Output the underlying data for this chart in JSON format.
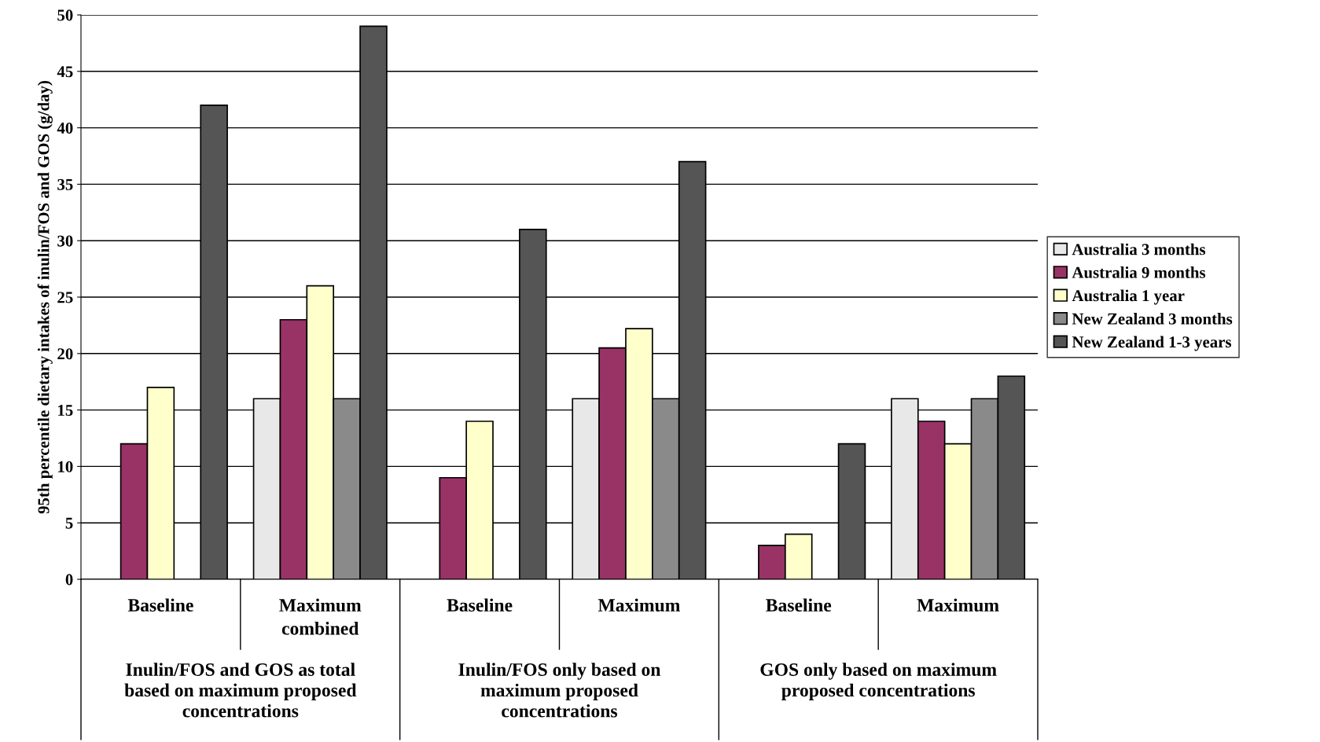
{
  "chart_data": {
    "type": "bar",
    "ylabel": "95th percentile dietary intakes of inulin/FOS and GOS (g/day)",
    "categories": [
      "Baseline",
      "Maximum\ncombined",
      "Baseline",
      "Maximum",
      "Baseline",
      "Maximum"
    ],
    "series": [
      {
        "name": "Australia 3 months",
        "color": "#e8e8e8",
        "values": [
          null,
          16,
          null,
          16,
          null,
          16
        ]
      },
      {
        "name": "Australia 9 months",
        "color": "#993366",
        "values": [
          12,
          23,
          9,
          20.5,
          3,
          14
        ]
      },
      {
        "name": "Australia 1 year",
        "color": "#ffffcc",
        "values": [
          17,
          26,
          14,
          22.2,
          4,
          12
        ]
      },
      {
        "name": "New Zealand 3 months",
        "color": "#8a8a8a",
        "values": [
          null,
          16,
          null,
          16,
          null,
          16
        ]
      },
      {
        "name": "New Zealand 1-3 years",
        "color": "#555555",
        "values": [
          42,
          49,
          31,
          37,
          12,
          18
        ]
      }
    ],
    "annotations": [
      "Inulin/FOS and GOS as total based on maximum proposed concentrations",
      "Inulin/FOS only based on maximum proposed concentrations",
      "GOS only based on maximum proposed concentrations"
    ],
    "ylim": [
      0,
      50
    ],
    "yticks": [
      0,
      5,
      10,
      15,
      20,
      25,
      30,
      35,
      40,
      45,
      50
    ],
    "grid": "y",
    "legend": "right"
  }
}
